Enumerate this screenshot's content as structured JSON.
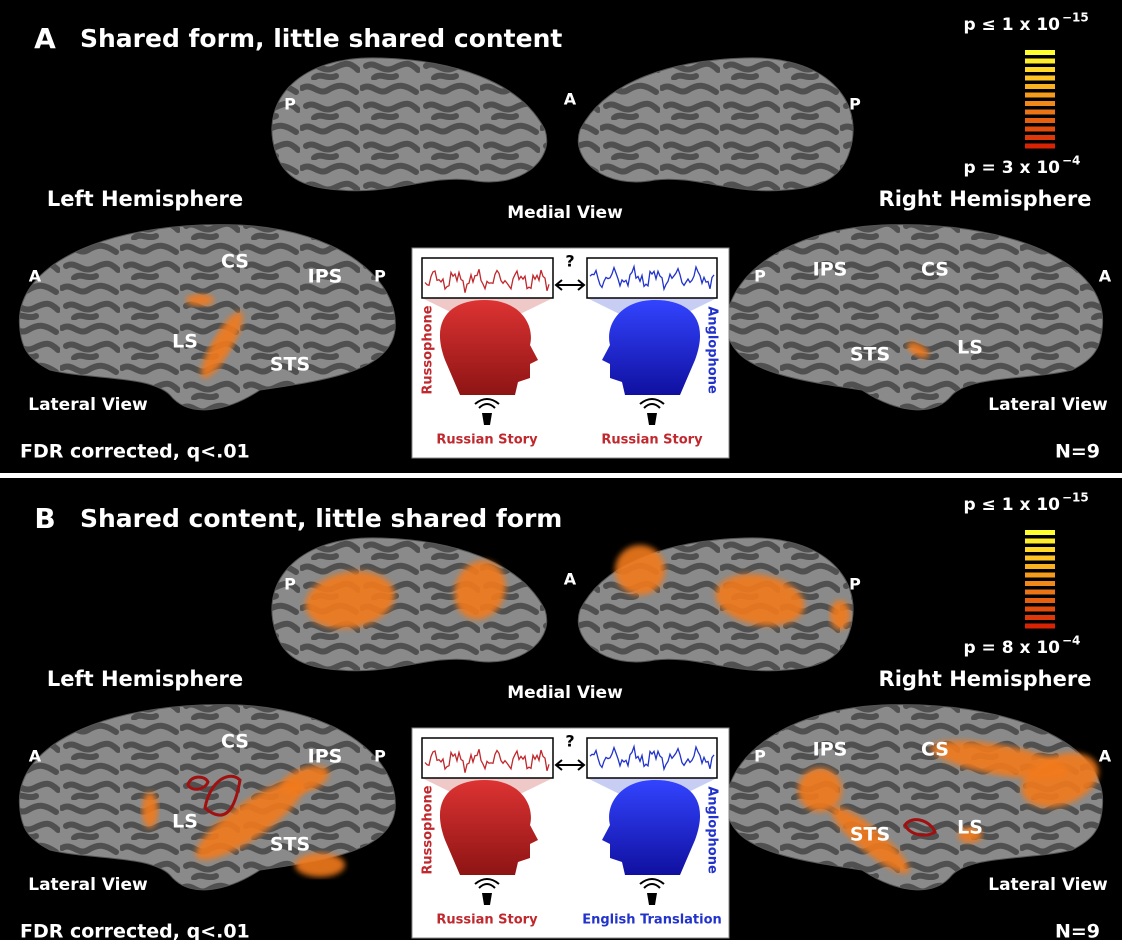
{
  "panels": [
    {
      "label": "A",
      "title": "Shared form, little shared content",
      "cbar_top_base": "p ≤ 1 x 10",
      "cbar_top_exp": "−15",
      "cbar_bottom_base": "p = 3 x 10",
      "cbar_bottom_exp": "−4",
      "medial_left_p": "P",
      "medial_a": "A",
      "medial_right_p": "P",
      "left_hemisphere": "Left Hemisphere",
      "medial_view": "Medial View",
      "right_hemisphere": "Right Hemisphere",
      "left_lateral": {
        "a": "A",
        "cs": "CS",
        "ips": "IPS",
        "p": "P",
        "ls": "LS",
        "sts": "STS",
        "view": "Lateral View"
      },
      "right_lateral": {
        "p": "P",
        "ips": "IPS",
        "cs": "CS",
        "a": "A",
        "sts": "STS",
        "ls": "LS",
        "view": "Lateral View"
      },
      "fdr": "FDR corrected, q<.01",
      "n": "N=9",
      "inset": {
        "question": "?",
        "left_group": "Russophone",
        "right_group": "Anglophone",
        "left_stimulus": "Russian Story",
        "right_stimulus": "Russian Story"
      }
    },
    {
      "label": "B",
      "title": "Shared content, little shared form",
      "cbar_top_base": "p ≤ 1 x 10",
      "cbar_top_exp": "−15",
      "cbar_bottom_base": "p = 8 x 10",
      "cbar_bottom_exp": "−4",
      "medial_left_p": "P",
      "medial_a": "A",
      "medial_right_p": "P",
      "left_hemisphere": "Left Hemisphere",
      "medial_view": "Medial View",
      "right_hemisphere": "Right Hemisphere",
      "left_lateral": {
        "a": "A",
        "cs": "CS",
        "ips": "IPS",
        "p": "P",
        "ls": "LS",
        "sts": "STS",
        "view": "Lateral View"
      },
      "right_lateral": {
        "p": "P",
        "ips": "IPS",
        "cs": "CS",
        "a": "A",
        "sts": "STS",
        "ls": "LS",
        "view": "Lateral View"
      },
      "fdr": "FDR corrected, q<.01",
      "n": "N=9",
      "inset": {
        "question": "?",
        "left_group": "Russophone",
        "right_group": "Anglophone",
        "left_stimulus": "Russian Story",
        "right_stimulus": "English Translation"
      }
    }
  ]
}
